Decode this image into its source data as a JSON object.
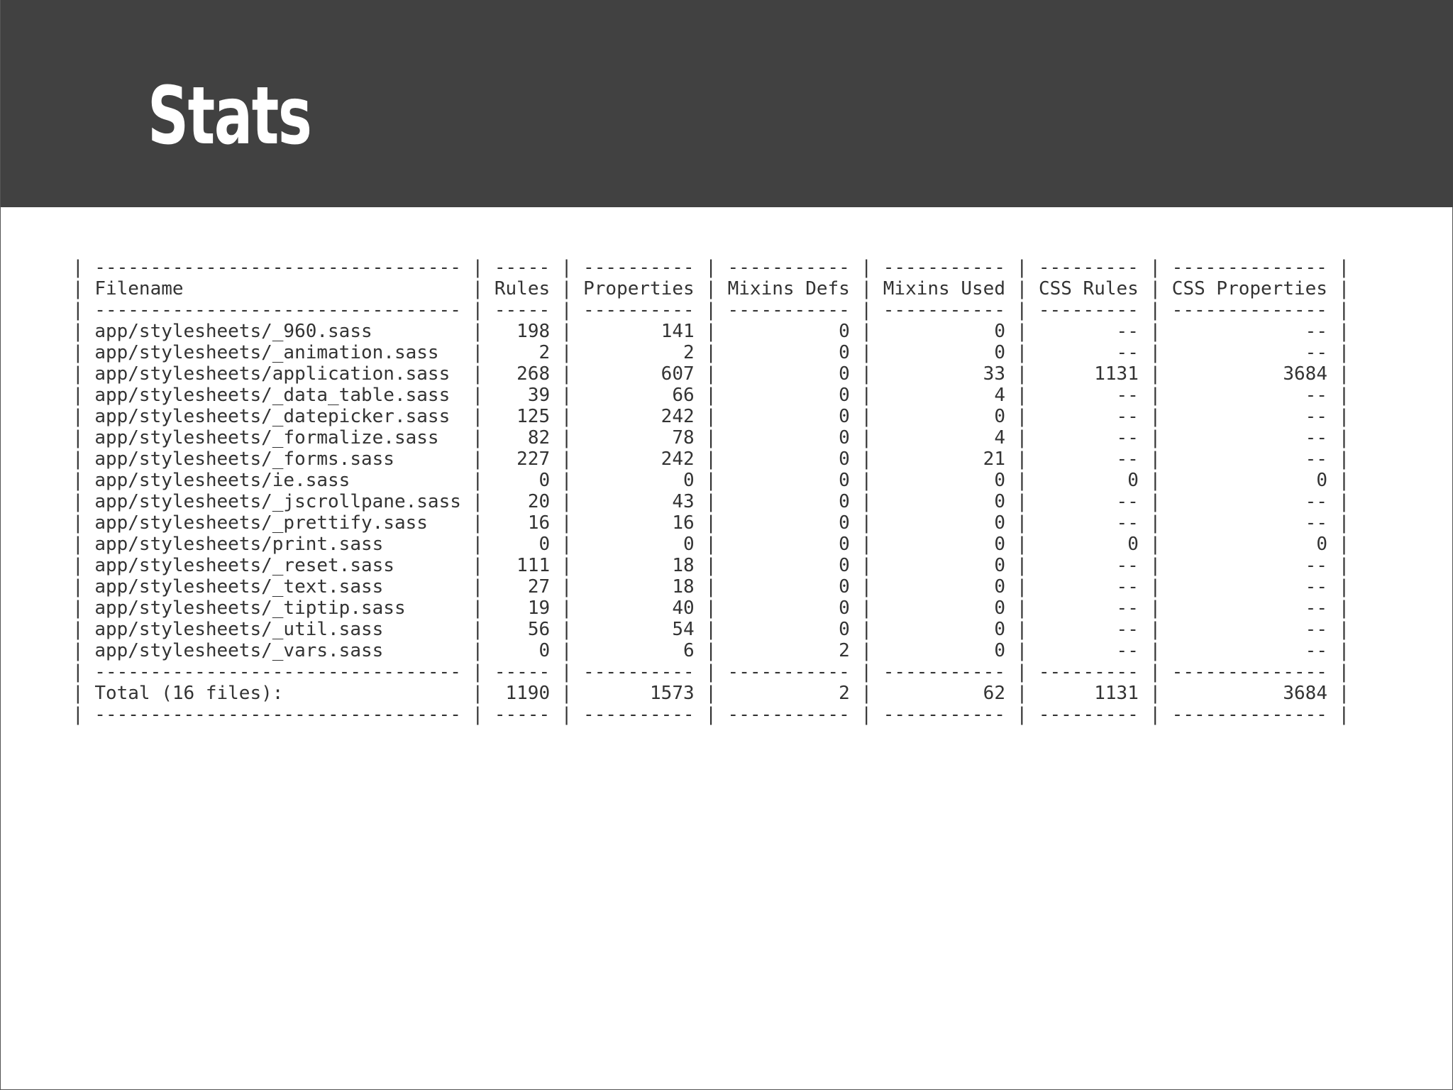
{
  "slide": {
    "title": "Stats"
  },
  "table": {
    "columns": [
      "Filename",
      "Rules",
      "Properties",
      "Mixins Defs",
      "Mixins Used",
      "CSS Rules",
      "CSS Properties"
    ],
    "rows": [
      [
        "app/stylesheets/_960.sass",
        "198",
        "141",
        "0",
        "0",
        "--",
        "--"
      ],
      [
        "app/stylesheets/_animation.sass",
        "2",
        "2",
        "0",
        "0",
        "--",
        "--"
      ],
      [
        "app/stylesheets/application.sass",
        "268",
        "607",
        "0",
        "33",
        "1131",
        "3684"
      ],
      [
        "app/stylesheets/_data_table.sass",
        "39",
        "66",
        "0",
        "4",
        "--",
        "--"
      ],
      [
        "app/stylesheets/_datepicker.sass",
        "125",
        "242",
        "0",
        "0",
        "--",
        "--"
      ],
      [
        "app/stylesheets/_formalize.sass",
        "82",
        "78",
        "0",
        "4",
        "--",
        "--"
      ],
      [
        "app/stylesheets/_forms.sass",
        "227",
        "242",
        "0",
        "21",
        "--",
        "--"
      ],
      [
        "app/stylesheets/ie.sass",
        "0",
        "0",
        "0",
        "0",
        "0",
        "0"
      ],
      [
        "app/stylesheets/_jscrollpane.sass",
        "20",
        "43",
        "0",
        "0",
        "--",
        "--"
      ],
      [
        "app/stylesheets/_prettify.sass",
        "16",
        "16",
        "0",
        "0",
        "--",
        "--"
      ],
      [
        "app/stylesheets/print.sass",
        "0",
        "0",
        "0",
        "0",
        "0",
        "0"
      ],
      [
        "app/stylesheets/_reset.sass",
        "111",
        "18",
        "0",
        "0",
        "--",
        "--"
      ],
      [
        "app/stylesheets/_text.sass",
        "27",
        "18",
        "0",
        "0",
        "--",
        "--"
      ],
      [
        "app/stylesheets/_tiptip.sass",
        "19",
        "40",
        "0",
        "0",
        "--",
        "--"
      ],
      [
        "app/stylesheets/_util.sass",
        "56",
        "54",
        "0",
        "0",
        "--",
        "--"
      ],
      [
        "app/stylesheets/_vars.sass",
        "0",
        "6",
        "2",
        "0",
        "--",
        "--"
      ]
    ],
    "total": [
      "Total (16 files):",
      "1190",
      "1573",
      "2",
      "62",
      "1131",
      "3684"
    ]
  },
  "colors": {
    "header_bg": "#414141",
    "title_text": "#ffffff",
    "body_text": "#333333"
  }
}
